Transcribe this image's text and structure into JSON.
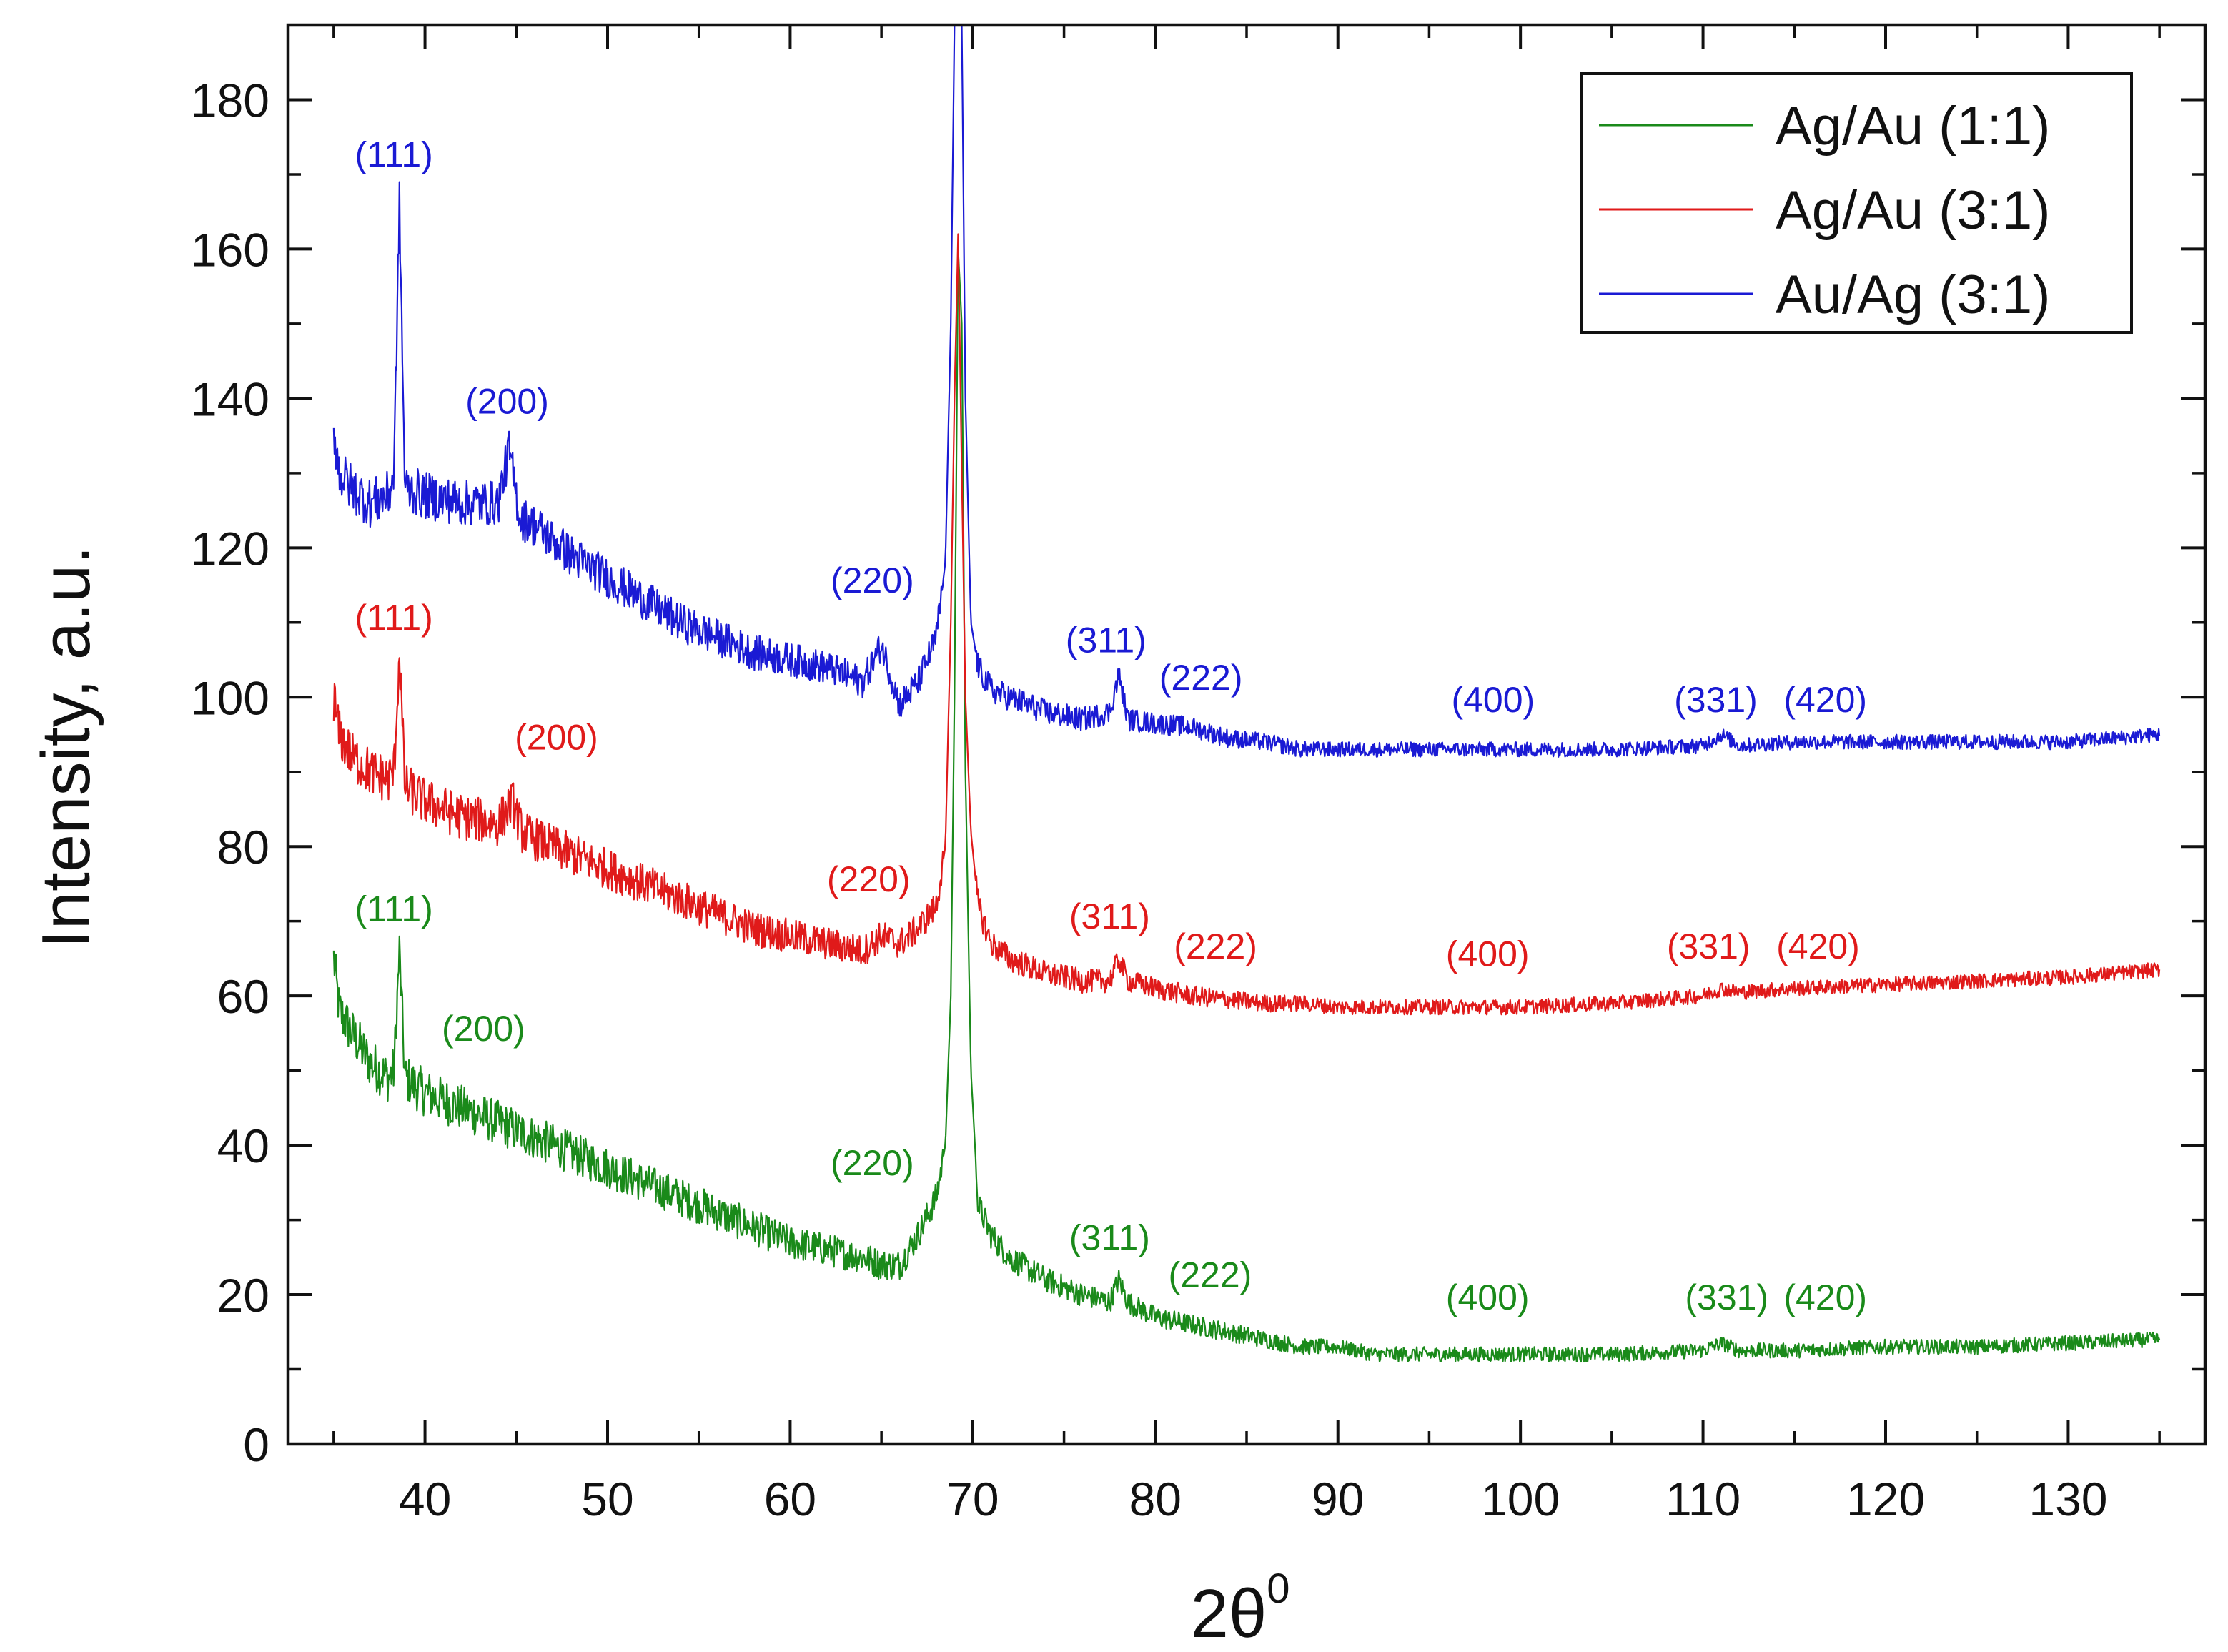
{
  "chart_data": {
    "type": "line",
    "xlabel_main": "2θ",
    "xlabel_sup": "0",
    "ylabel": "Intensity, a.u.",
    "xlim": [
      32.5,
      137.5
    ],
    "ylim": [
      0,
      190
    ],
    "xticks": [
      40,
      50,
      60,
      70,
      80,
      90,
      100,
      110,
      120,
      130
    ],
    "yticks": [
      0,
      20,
      40,
      60,
      80,
      100,
      120,
      140,
      160,
      180
    ],
    "legend_position": "top-right",
    "series": [
      {
        "name": "Ag/Au (1:1)",
        "color": "#1a8a1a",
        "points": [
          [
            35,
            65
          ],
          [
            35.3,
            58
          ],
          [
            36,
            55
          ],
          [
            37,
            51
          ],
          [
            38,
            49
          ],
          [
            38.3,
            50
          ],
          [
            38.6,
            66
          ],
          [
            38.9,
            49
          ],
          [
            40,
            47
          ],
          [
            42,
            45
          ],
          [
            44,
            43
          ],
          [
            46,
            41
          ],
          [
            48,
            39
          ],
          [
            50,
            37
          ],
          [
            52,
            35
          ],
          [
            54,
            33
          ],
          [
            56,
            31
          ],
          [
            58,
            29
          ],
          [
            60,
            27
          ],
          [
            62,
            26
          ],
          [
            64,
            25
          ],
          [
            65,
            24
          ],
          [
            66,
            24
          ],
          [
            67,
            28
          ],
          [
            68,
            33
          ],
          [
            68.5,
            40
          ],
          [
            68.8,
            60
          ],
          [
            69.0,
            100
          ],
          [
            69.2,
            160
          ],
          [
            69.4,
            150
          ],
          [
            69.6,
            90
          ],
          [
            69.9,
            50
          ],
          [
            70.3,
            32
          ],
          [
            71,
            28
          ],
          [
            72,
            25
          ],
          [
            74,
            22
          ],
          [
            76,
            20
          ],
          [
            77.5,
            19
          ],
          [
            78,
            22
          ],
          [
            78.5,
            19
          ],
          [
            80,
            17
          ],
          [
            82,
            16
          ],
          [
            84,
            15
          ],
          [
            86,
            14
          ],
          [
            88,
            13
          ],
          [
            90,
            13
          ],
          [
            92,
            12
          ],
          [
            95,
            12
          ],
          [
            100,
            12
          ],
          [
            105,
            12
          ],
          [
            110,
            12.5
          ],
          [
            111,
            13.5
          ],
          [
            112,
            12.5
          ],
          [
            115,
            12.5
          ],
          [
            120,
            13
          ],
          [
            125,
            13
          ],
          [
            130,
            13.5
          ],
          [
            135,
            14
          ]
        ]
      },
      {
        "name": "Ag/Au (3:1)",
        "color": "#e01a1a",
        "points": [
          [
            35,
            100
          ],
          [
            35.3,
            95
          ],
          [
            36,
            92
          ],
          [
            37,
            90
          ],
          [
            38,
            89
          ],
          [
            38.3,
            90
          ],
          [
            38.6,
            106
          ],
          [
            38.9,
            88
          ],
          [
            40,
            86
          ],
          [
            42,
            84
          ],
          [
            44,
            83
          ],
          [
            44.8,
            86
          ],
          [
            45.3,
            82
          ],
          [
            46,
            81
          ],
          [
            48,
            79
          ],
          [
            50,
            77
          ],
          [
            52,
            75
          ],
          [
            54,
            73
          ],
          [
            56,
            71
          ],
          [
            58,
            69
          ],
          [
            60,
            68
          ],
          [
            62,
            67
          ],
          [
            64,
            66
          ],
          [
            65,
            68
          ],
          [
            66,
            67
          ],
          [
            67,
            69
          ],
          [
            68,
            72
          ],
          [
            68.5,
            80
          ],
          [
            68.8,
            110
          ],
          [
            69.0,
            140
          ],
          [
            69.2,
            162
          ],
          [
            69.4,
            130
          ],
          [
            69.6,
            100
          ],
          [
            69.9,
            82
          ],
          [
            70.3,
            72
          ],
          [
            71,
            67
          ],
          [
            72,
            65
          ],
          [
            74,
            63
          ],
          [
            76,
            62
          ],
          [
            77.5,
            62
          ],
          [
            78,
            65
          ],
          [
            78.5,
            62
          ],
          [
            80,
            61
          ],
          [
            82,
            60
          ],
          [
            84,
            59.5
          ],
          [
            86,
            59
          ],
          [
            88,
            59
          ],
          [
            90,
            58.5
          ],
          [
            95,
            58.5
          ],
          [
            100,
            58.5
          ],
          [
            105,
            59
          ],
          [
            110,
            60
          ],
          [
            111,
            61
          ],
          [
            112,
            60.5
          ],
          [
            115,
            61
          ],
          [
            120,
            61.5
          ],
          [
            125,
            62
          ],
          [
            130,
            62.5
          ],
          [
            135,
            63.5
          ]
        ]
      },
      {
        "name": "Au/Ag (3:1)",
        "color": "#1a1ad4",
        "points": [
          [
            35,
            136
          ],
          [
            35.3,
            130
          ],
          [
            36,
            128
          ],
          [
            37,
            126
          ],
          [
            38,
            127
          ],
          [
            38.3,
            130
          ],
          [
            38.6,
            166
          ],
          [
            38.9,
            128
          ],
          [
            40,
            127
          ],
          [
            42,
            126
          ],
          [
            44,
            126
          ],
          [
            44.6,
            133
          ],
          [
            45.2,
            124
          ],
          [
            46,
            123
          ],
          [
            48,
            119
          ],
          [
            50,
            116
          ],
          [
            52,
            113
          ],
          [
            54,
            110
          ],
          [
            56,
            108
          ],
          [
            58,
            106
          ],
          [
            60,
            105
          ],
          [
            62,
            104
          ],
          [
            64,
            102
          ],
          [
            65,
            107
          ],
          [
            65.5,
            103
          ],
          [
            66,
            99
          ],
          [
            67,
            102
          ],
          [
            68,
            108
          ],
          [
            68.5,
            118
          ],
          [
            68.8,
            150
          ],
          [
            69.0,
            190
          ],
          [
            69.2,
            190
          ],
          [
            69.4,
            190
          ],
          [
            69.6,
            140
          ],
          [
            69.9,
            110
          ],
          [
            70.3,
            104
          ],
          [
            71,
            101
          ],
          [
            72,
            100
          ],
          [
            74,
            98
          ],
          [
            76,
            97
          ],
          [
            77.5,
            98
          ],
          [
            78,
            103
          ],
          [
            78.5,
            97
          ],
          [
            80,
            96.5
          ],
          [
            82,
            96
          ],
          [
            84,
            94.5
          ],
          [
            86,
            94
          ],
          [
            88,
            93
          ],
          [
            90,
            93
          ],
          [
            95,
            93
          ],
          [
            100,
            93
          ],
          [
            105,
            93
          ],
          [
            110,
            93.5
          ],
          [
            111,
            95
          ],
          [
            112,
            93.5
          ],
          [
            115,
            94
          ],
          [
            120,
            94
          ],
          [
            125,
            94
          ],
          [
            130,
            94
          ],
          [
            135,
            95
          ]
        ]
      }
    ],
    "annotations": [
      {
        "text": "(111)",
        "series": "Au/Ag (3:1)",
        "x": 38.3,
        "y": 171
      },
      {
        "text": "(200)",
        "series": "Au/Ag (3:1)",
        "x": 44.5,
        "y": 138
      },
      {
        "text": "(220)",
        "series": "Au/Ag (3:1)",
        "x": 64.5,
        "y": 114
      },
      {
        "text": "(311)",
        "series": "Au/Ag (3:1)",
        "x": 77.3,
        "y": 106
      },
      {
        "text": "(222)",
        "series": "Au/Ag (3:1)",
        "x": 82.5,
        "y": 101
      },
      {
        "text": "(400)",
        "series": "Au/Ag (3:1)",
        "x": 98.5,
        "y": 98
      },
      {
        "text": "(331)",
        "series": "Au/Ag (3:1)",
        "x": 110.7,
        "y": 98
      },
      {
        "text": "(420)",
        "series": "Au/Ag (3:1)",
        "x": 116.7,
        "y": 98
      },
      {
        "text": "(111)",
        "series": "Ag/Au (3:1)",
        "x": 38.3,
        "y": 109
      },
      {
        "text": "(200)",
        "series": "Ag/Au (3:1)",
        "x": 47.2,
        "y": 93
      },
      {
        "text": "(220)",
        "series": "Ag/Au (3:1)",
        "x": 64.3,
        "y": 74
      },
      {
        "text": "(311)",
        "series": "Ag/Au (3:1)",
        "x": 77.5,
        "y": 69
      },
      {
        "text": "(222)",
        "series": "Ag/Au (3:1)",
        "x": 83.3,
        "y": 65
      },
      {
        "text": "(400)",
        "series": "Ag/Au (3:1)",
        "x": 98.2,
        "y": 64
      },
      {
        "text": "(331)",
        "series": "Ag/Au (3:1)",
        "x": 110.3,
        "y": 65
      },
      {
        "text": "(420)",
        "series": "Ag/Au (3:1)",
        "x": 116.3,
        "y": 65
      },
      {
        "text": "(111)",
        "series": "Ag/Au (1:1)",
        "x": 38.3,
        "y": 70
      },
      {
        "text": "(200)",
        "series": "Ag/Au (1:1)",
        "x": 43.2,
        "y": 54
      },
      {
        "text": "(220)",
        "series": "Ag/Au (1:1)",
        "x": 64.5,
        "y": 36
      },
      {
        "text": "(311)",
        "series": "Ag/Au (1:1)",
        "x": 77.5,
        "y": 26
      },
      {
        "text": "(222)",
        "series": "Ag/Au (1:1)",
        "x": 83,
        "y": 21
      },
      {
        "text": "(400)",
        "series": "Ag/Au (1:1)",
        "x": 98.2,
        "y": 18
      },
      {
        "text": "(331)",
        "series": "Ag/Au (1:1)",
        "x": 111.3,
        "y": 18
      },
      {
        "text": "(420)",
        "series": "Ag/Au (1:1)",
        "x": 116.7,
        "y": 18
      }
    ]
  }
}
